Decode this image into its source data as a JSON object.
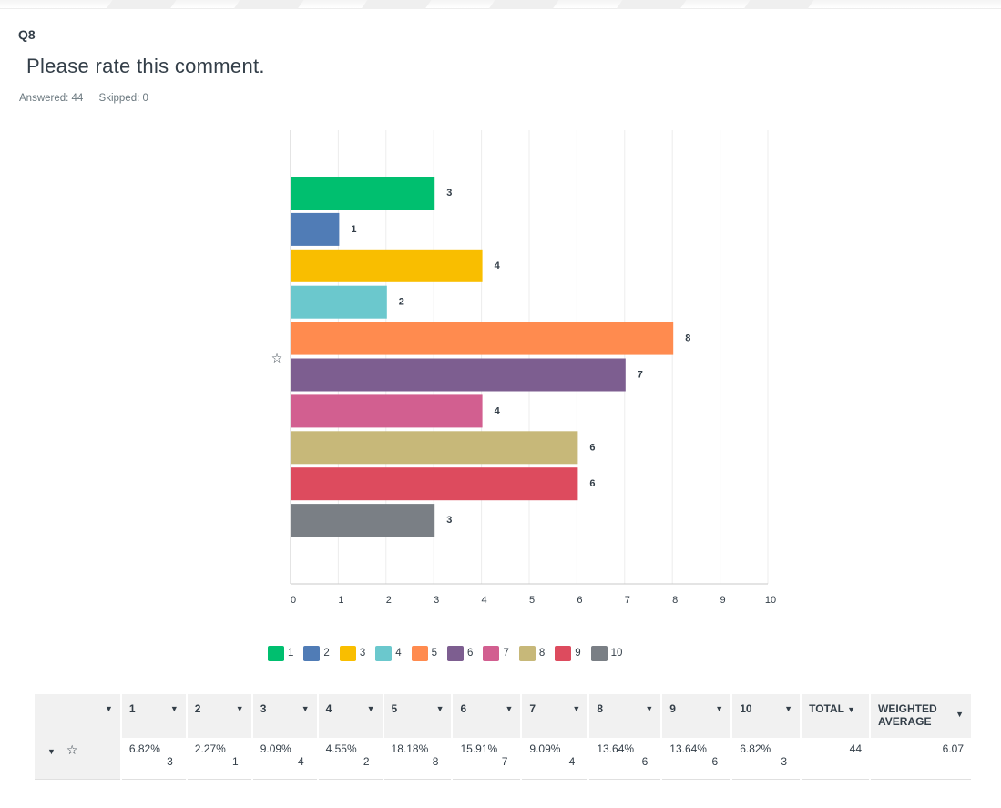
{
  "question": {
    "number": "Q8",
    "title": "Please rate this comment.",
    "answered_label": "Answered: 44",
    "skipped_label": "Skipped: 0"
  },
  "chart_data": {
    "type": "bar",
    "orientation": "horizontal",
    "row_label_icon": "star-icon",
    "categories": [
      "1",
      "2",
      "3",
      "4",
      "5",
      "6",
      "7",
      "8",
      "9",
      "10"
    ],
    "values": [
      3,
      1,
      4,
      2,
      8,
      7,
      4,
      6,
      6,
      3
    ],
    "colors": [
      "#00bf6f",
      "#507cb6",
      "#f9be00",
      "#6bc8cd",
      "#ff8b4f",
      "#7d5e90",
      "#d25f90",
      "#c7b879",
      "#dd4b5e",
      "#7a7f85"
    ],
    "xlim": [
      0,
      10
    ],
    "x_ticks": [
      "0",
      "1",
      "2",
      "3",
      "4",
      "5",
      "6",
      "7",
      "8",
      "9",
      "10"
    ],
    "grid": true,
    "legend_position": "bottom"
  },
  "legend": {
    "items": [
      {
        "label": "1",
        "color": "#00bf6f"
      },
      {
        "label": "2",
        "color": "#507cb6"
      },
      {
        "label": "3",
        "color": "#f9be00"
      },
      {
        "label": "4",
        "color": "#6bc8cd"
      },
      {
        "label": "5",
        "color": "#ff8b4f"
      },
      {
        "label": "6",
        "color": "#7d5e90"
      },
      {
        "label": "7",
        "color": "#d25f90"
      },
      {
        "label": "8",
        "color": "#c7b879"
      },
      {
        "label": "9",
        "color": "#dd4b5e"
      },
      {
        "label": "10",
        "color": "#7a7f85"
      }
    ]
  },
  "table": {
    "columns": [
      "1",
      "2",
      "3",
      "4",
      "5",
      "6",
      "7",
      "8",
      "9",
      "10",
      "TOTAL",
      "WEIGHTED AVERAGE"
    ],
    "header_line1": "WEIGHTED",
    "header_line2": "AVERAGE",
    "row": {
      "icon": "star-icon",
      "percents": [
        "6.82%",
        "2.27%",
        "9.09%",
        "4.55%",
        "18.18%",
        "15.91%",
        "9.09%",
        "13.64%",
        "13.64%",
        "6.82%"
      ],
      "counts": [
        "3",
        "1",
        "4",
        "2",
        "8",
        "7",
        "4",
        "6",
        "6",
        "3"
      ],
      "total": "44",
      "weighted_average": "6.07"
    }
  }
}
